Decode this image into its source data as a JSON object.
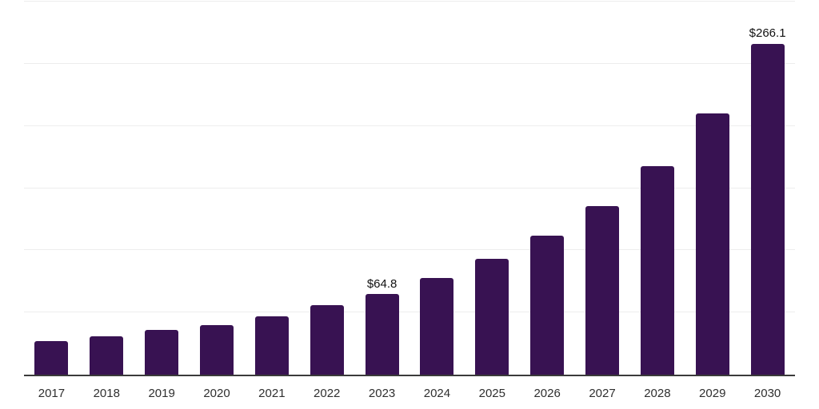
{
  "chart_data": {
    "type": "bar",
    "title": "",
    "xlabel": "",
    "ylabel": "",
    "categories": [
      "2017",
      "2018",
      "2019",
      "2020",
      "2021",
      "2022",
      "2023",
      "2024",
      "2025",
      "2026",
      "2027",
      "2028",
      "2029",
      "2030"
    ],
    "values": [
      26.8,
      31.1,
      35.7,
      39.6,
      46.9,
      55.8,
      64.8,
      77.8,
      92.9,
      112.1,
      135.8,
      167.8,
      210.1,
      266.1
    ],
    "data_labels": [
      {
        "index": 6,
        "text": "$64.8"
      },
      {
        "index": 13,
        "text": "$266.1"
      }
    ],
    "ylim": [
      0,
      300
    ],
    "gridline_step": 50,
    "grid": "horizontal",
    "legend": "none",
    "colors": {
      "bar": "#381252",
      "axis_line": "#3a3a3a",
      "gridline": "#ededed",
      "tick_label": "#2f2f2f",
      "data_label": "#111111"
    }
  }
}
